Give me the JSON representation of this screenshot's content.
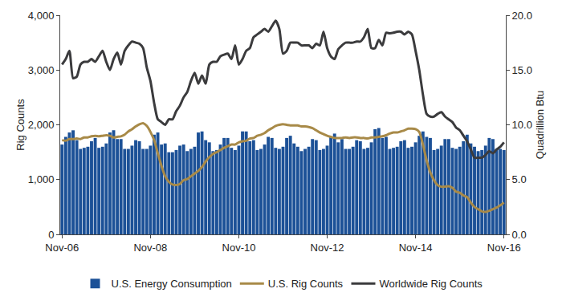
{
  "chart_data": {
    "type": "bar",
    "categories": [
      "Nov-06",
      null,
      null,
      null,
      null,
      null,
      null,
      null,
      null,
      null,
      null,
      null,
      null,
      null,
      null,
      null,
      null,
      null,
      null,
      null,
      null,
      null,
      null,
      null,
      "Nov-08",
      null,
      null,
      null,
      null,
      null,
      null,
      null,
      null,
      null,
      null,
      null,
      null,
      null,
      null,
      null,
      null,
      null,
      null,
      null,
      null,
      null,
      null,
      null,
      "Nov-10",
      null,
      null,
      null,
      null,
      null,
      null,
      null,
      null,
      null,
      null,
      null,
      null,
      null,
      null,
      null,
      null,
      null,
      null,
      null,
      null,
      null,
      null,
      null,
      "Nov-12",
      null,
      null,
      null,
      null,
      null,
      null,
      null,
      null,
      null,
      null,
      null,
      null,
      null,
      null,
      null,
      null,
      null,
      null,
      null,
      null,
      null,
      null,
      null,
      "Nov-14",
      null,
      null,
      null,
      null,
      null,
      null,
      null,
      null,
      null,
      null,
      null,
      null,
      null,
      null,
      null,
      null,
      null,
      null,
      null,
      null,
      null,
      null,
      null,
      "Nov-16"
    ],
    "y_label": "Rig Counts",
    "y2_label": "Quadrillion Btu",
    "ylim": [
      0,
      4000
    ],
    "yticks": [
      0,
      {
        "value": 1000,
        "label": "1,000"
      },
      {
        "value": 2000,
        "label": "2,000"
      },
      {
        "value": 3000,
        "label": "3,000"
      },
      {
        "value": 4000,
        "label": "4,000"
      }
    ],
    "y2lim": [
      0,
      20
    ],
    "y2ticks": [
      {
        "value": 0,
        "label": "0.0"
      },
      {
        "value": 5,
        "label": "5.0"
      },
      {
        "value": 10,
        "label": "10.0"
      },
      {
        "value": 15,
        "label": "15.0"
      },
      {
        "value": 20,
        "label": "20.0"
      }
    ],
    "grid": false,
    "legend": "bottom",
    "series": [
      {
        "name": "U.S. Energy Consumption",
        "type": "bar",
        "axis": "y2",
        "color": "#1c5197",
        "values": [
          8.2,
          8.9,
          9.3,
          9.5,
          8.6,
          7.8,
          7.9,
          8.0,
          8.5,
          8.8,
          7.9,
          8.0,
          8.3,
          9.3,
          9.5,
          8.7,
          8.7,
          7.8,
          7.8,
          8.1,
          8.6,
          8.5,
          7.8,
          7.8,
          8.1,
          9.1,
          9.3,
          8.2,
          8.3,
          7.5,
          7.5,
          7.7,
          8.1,
          8.2,
          7.6,
          7.8,
          8.0,
          9.3,
          9.4,
          8.6,
          8.4,
          7.6,
          7.7,
          8.2,
          8.8,
          8.8,
          7.9,
          7.7,
          8.1,
          9.4,
          9.4,
          8.5,
          8.6,
          7.7,
          7.8,
          8.2,
          8.9,
          8.8,
          7.9,
          7.8,
          8.0,
          8.8,
          9.0,
          8.3,
          8.0,
          7.6,
          7.8,
          8.0,
          8.7,
          8.6,
          7.7,
          7.8,
          8.1,
          8.9,
          9.2,
          8.4,
          8.7,
          7.8,
          7.8,
          8.0,
          8.6,
          8.5,
          7.8,
          7.9,
          8.4,
          9.6,
          9.7,
          8.8,
          8.9,
          7.8,
          7.9,
          8.0,
          8.5,
          8.6,
          7.9,
          8.0,
          8.4,
          9.0,
          9.4,
          8.9,
          8.8,
          7.7,
          7.8,
          8.1,
          8.7,
          8.7,
          7.9,
          7.8,
          8.0,
          8.5,
          9.1,
          8.3,
          8.0,
          7.6,
          7.7,
          8.1,
          8.8,
          8.7,
          7.8,
          7.8,
          7.7
        ]
      },
      {
        "name": "U.S. Rig Counts",
        "type": "line",
        "color": "#a88a48",
        "line_style": "solid",
        "values": [
          1720,
          1710,
          1740,
          1740,
          1750,
          1740,
          1770,
          1770,
          1790,
          1800,
          1790,
          1800,
          1810,
          1800,
          1770,
          1780,
          1790,
          1820,
          1880,
          1920,
          1970,
          2010,
          2030,
          1980,
          1870,
          1720,
          1480,
          1250,
          1060,
          960,
          910,
          900,
          920,
          990,
          1010,
          1060,
          1110,
          1160,
          1230,
          1330,
          1410,
          1470,
          1500,
          1540,
          1580,
          1610,
          1640,
          1640,
          1680,
          1700,
          1710,
          1750,
          1760,
          1800,
          1820,
          1850,
          1900,
          1940,
          1980,
          2000,
          2010,
          2000,
          1990,
          1990,
          1990,
          1970,
          1970,
          1960,
          1940,
          1900,
          1860,
          1830,
          1800,
          1780,
          1760,
          1760,
          1760,
          1770,
          1760,
          1770,
          1770,
          1760,
          1760,
          1750,
          1770,
          1770,
          1780,
          1790,
          1810,
          1840,
          1860,
          1860,
          1880,
          1900,
          1930,
          1930,
          1920,
          1870,
          1640,
          1350,
          1130,
          990,
          900,
          870,
          870,
          880,
          850,
          780,
          760,
          710,
          680,
          580,
          500,
          460,
          420,
          410,
          430,
          460,
          490,
          530,
          580
        ]
      },
      {
        "name": "Worldwide Rig Counts",
        "type": "line",
        "color": "#3b3b3d",
        "line_style": "solid",
        "values": [
          3100,
          3200,
          3350,
          2850,
          2880,
          3100,
          3150,
          3150,
          3200,
          3150,
          3250,
          3350,
          3150,
          3000,
          3200,
          3320,
          3100,
          3350,
          3450,
          3520,
          3500,
          3480,
          3400,
          3050,
          2800,
          2400,
          2100,
          2050,
          2000,
          2100,
          2100,
          2250,
          2350,
          2500,
          2600,
          2800,
          2950,
          2750,
          2900,
          2750,
          3100,
          3150,
          3150,
          3250,
          3280,
          3300,
          3200,
          3450,
          3100,
          3200,
          3350,
          3400,
          3600,
          3650,
          3700,
          3750,
          3700,
          3800,
          3900,
          3750,
          3300,
          3350,
          3500,
          3500,
          3500,
          3450,
          3450,
          3450,
          3400,
          3480,
          3450,
          3700,
          3400,
          3250,
          3200,
          3380,
          3450,
          3500,
          3500,
          3500,
          3520,
          3520,
          3600,
          3750,
          3400,
          3400,
          3550,
          3450,
          3680,
          3670,
          3680,
          3700,
          3700,
          3650,
          3700,
          3650,
          3350,
          3000,
          2550,
          2200,
          2150,
          2150,
          2200,
          2230,
          2150,
          2100,
          2050,
          1950,
          1900,
          1800,
          1700,
          1550,
          1400,
          1400,
          1400,
          1450,
          1520,
          1480,
          1550,
          1600,
          1680
        ]
      }
    ]
  }
}
